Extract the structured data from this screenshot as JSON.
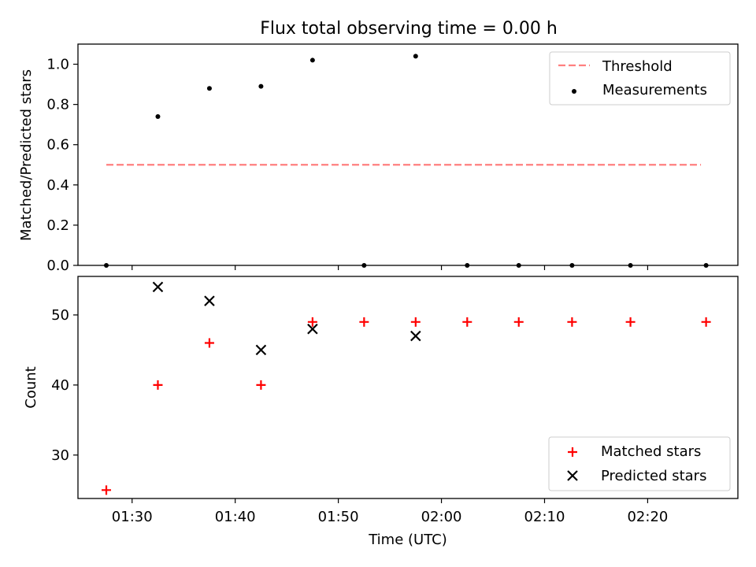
{
  "chart_data": [
    {
      "type": "scatter",
      "title": "Flux total observing time = 0.00 h",
      "xlabel": "",
      "ylabel": "Matched/Predicted stars",
      "ylim": [
        0.0,
        1.1
      ],
      "yticks": [
        0.0,
        0.2,
        0.4,
        0.6,
        0.8,
        1.0
      ],
      "ytick_labels": [
        "0.0",
        "0.2",
        "0.4",
        "0.6",
        "0.8",
        "1.0"
      ],
      "legend_position": "top-right",
      "series": [
        {
          "name": "Threshold",
          "kind": "line",
          "style": "dashed",
          "color": "#ff7f7f",
          "x": [
            "01:27:30",
            "02:25:10"
          ],
          "y": [
            0.5,
            0.5
          ]
        },
        {
          "name": "Measurements",
          "kind": "scatter",
          "marker": "dot",
          "color": "#000000",
          "x": [
            "01:27:30",
            "01:32:30",
            "01:37:30",
            "01:42:30",
            "01:47:30",
            "01:52:30",
            "01:57:30",
            "02:02:30",
            "02:07:30",
            "02:12:40",
            "02:18:20",
            "02:25:40"
          ],
          "y": [
            0.0,
            0.74,
            0.88,
            0.89,
            1.02,
            0.0,
            1.04,
            0.0,
            0.0,
            0.0,
            0.0,
            0.0
          ]
        }
      ]
    },
    {
      "type": "scatter",
      "title": "",
      "xlabel": "Time (UTC)",
      "ylabel": "Count",
      "ylim": [
        23.8,
        55.5
      ],
      "yticks": [
        30,
        40,
        50
      ],
      "ytick_labels": [
        "30",
        "40",
        "50"
      ],
      "xticks": [
        "01:30",
        "01:40",
        "01:50",
        "02:00",
        "02:10",
        "02:20"
      ],
      "legend_position": "bottom-right",
      "series": [
        {
          "name": "Matched stars",
          "kind": "scatter",
          "marker": "plus",
          "color": "#ff0000",
          "x": [
            "01:27:30",
            "01:32:30",
            "01:37:30",
            "01:42:30",
            "01:47:30",
            "01:52:30",
            "01:57:30",
            "02:02:30",
            "02:07:30",
            "02:12:40",
            "02:18:20",
            "02:25:40"
          ],
          "y": [
            25,
            40,
            46,
            40,
            49,
            49,
            49,
            49,
            49,
            49,
            49,
            49
          ]
        },
        {
          "name": "Predicted stars",
          "kind": "scatter",
          "marker": "x",
          "color": "#000000",
          "x": [
            "01:32:30",
            "01:37:30",
            "01:42:30",
            "01:47:30",
            "01:57:30"
          ],
          "y": [
            54,
            52,
            45,
            48,
            47
          ]
        }
      ]
    }
  ]
}
